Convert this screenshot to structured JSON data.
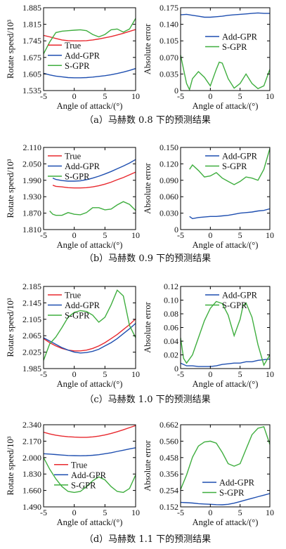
{
  "figure": {
    "captions": [
      "（a）马赫数 0.8 下的预测结果",
      "（b）马赫数 0.9 下的预测结果",
      "（c）马赫数 1.0 下的预测结果",
      "（d）马赫数 1.1 下的预测结果"
    ]
  },
  "colors": {
    "true": "#e8282e",
    "add_gpr": "#1f4fb0",
    "s_gpr": "#3fae3f"
  },
  "chart_data": [
    {
      "id": "a-speed",
      "type": "line",
      "xlabel": "Angle of attack/(°)",
      "ylabel": "Rotate speed/10³",
      "xlim": [
        -5,
        10
      ],
      "ylim": [
        1.535,
        1.885
      ],
      "xticks": [
        -5,
        0,
        5,
        10
      ],
      "yticks": [
        1.535,
        1.605,
        1.675,
        1.745,
        1.815,
        1.885
      ],
      "ytick_labels": [
        "1.535",
        "1.605",
        "1.675",
        "1.745",
        "1.815",
        "1.885"
      ],
      "legend": {
        "position": "center-left",
        "entries": [
          "True",
          "Add-GPR",
          "S-GPR"
        ]
      },
      "series": [
        {
          "name": "True",
          "color_key": "true",
          "x": [
            -5,
            -4,
            -3,
            -2,
            -1,
            0,
            1,
            2,
            3,
            4,
            5,
            6,
            7,
            8,
            9,
            10
          ],
          "y": [
            1.768,
            1.762,
            1.755,
            1.749,
            1.746,
            1.745,
            1.745,
            1.746,
            1.749,
            1.753,
            1.758,
            1.763,
            1.77,
            1.777,
            1.785,
            1.793
          ]
        },
        {
          "name": "Add-GPR",
          "color_key": "add_gpr",
          "x": [
            -5,
            -4,
            -3,
            -2,
            -1,
            0,
            1,
            2,
            3,
            4,
            5,
            6,
            7,
            8,
            9,
            10
          ],
          "y": [
            1.608,
            1.601,
            1.596,
            1.593,
            1.59,
            1.589,
            1.589,
            1.59,
            1.592,
            1.595,
            1.598,
            1.602,
            1.607,
            1.613,
            1.62,
            1.628
          ]
        },
        {
          "name": "S-GPR",
          "color_key": "s_gpr",
          "x": [
            -5,
            -4,
            -3,
            -2,
            -1,
            0,
            1,
            2,
            3,
            4,
            5,
            6,
            7,
            8,
            9,
            10
          ],
          "y": [
            1.69,
            1.74,
            1.78,
            1.786,
            1.788,
            1.79,
            1.792,
            1.788,
            1.772,
            1.762,
            1.772,
            1.792,
            1.795,
            1.782,
            1.795,
            1.84
          ]
        }
      ]
    },
    {
      "id": "a-err",
      "type": "line",
      "xlabel": "Angle of attack/(°)",
      "ylabel": "Absolute error",
      "xlim": [
        -5,
        10
      ],
      "ylim": [
        0,
        0.175
      ],
      "xticks": [
        -5,
        0,
        5,
        10
      ],
      "yticks": [
        0,
        0.035,
        0.07,
        0.105,
        0.14,
        0.175
      ],
      "ytick_labels": [
        "0",
        "0.035",
        "0.070",
        "0.105",
        "0.140",
        "0.175"
      ],
      "legend": {
        "position": "right",
        "entries": [
          "Add-GPR",
          "S-GPR"
        ]
      },
      "series": [
        {
          "name": "Add-GPR",
          "color_key": "add_gpr",
          "x": [
            -5,
            -4,
            -3,
            -2,
            -1,
            0,
            1,
            2,
            3,
            4,
            5,
            6,
            7,
            8,
            9,
            10
          ],
          "y": [
            0.16,
            0.161,
            0.159,
            0.157,
            0.155,
            0.155,
            0.156,
            0.157,
            0.159,
            0.16,
            0.161,
            0.162,
            0.163,
            0.164,
            0.163,
            0.163
          ]
        },
        {
          "name": "S-GPR",
          "color_key": "s_gpr",
          "x": [
            -5,
            -4.5,
            -4,
            -3.5,
            -3,
            -2,
            -1,
            0,
            1,
            1.5,
            2,
            3,
            4,
            5,
            6,
            7,
            8,
            9,
            10
          ],
          "y": [
            0.075,
            0.045,
            0.015,
            0.002,
            0.025,
            0.04,
            0.028,
            0.01,
            0.045,
            0.06,
            0.058,
            0.025,
            0.005,
            0.015,
            0.035,
            0.015,
            0.004,
            0.01,
            0.045
          ]
        }
      ]
    },
    {
      "id": "b-speed",
      "type": "line",
      "xlabel": "Angle of attack/(°)",
      "ylabel": "Rotate speed/10³",
      "xlim": [
        -5,
        10
      ],
      "ylim": [
        1.81,
        2.11
      ],
      "xticks": [
        -5,
        0,
        5,
        10
      ],
      "yticks": [
        1.81,
        1.87,
        1.93,
        1.99,
        2.05,
        2.11
      ],
      "ytick_labels": [
        "1.810",
        "1.870",
        "1.930",
        "1.990",
        "2.050",
        "2.110"
      ],
      "legend": {
        "position": "top-left",
        "entries": [
          "True",
          "Add-GPR",
          "S-GPR"
        ]
      },
      "series": [
        {
          "name": "True",
          "color_key": "true",
          "x": [
            -3.5,
            -3,
            -2,
            -1,
            0,
            1,
            2,
            3,
            4,
            5,
            6,
            7,
            8,
            9,
            10
          ],
          "y": [
            1.972,
            1.968,
            1.966,
            1.963,
            1.962,
            1.962,
            1.963,
            1.966,
            1.97,
            1.976,
            1.983,
            1.992,
            2.0,
            2.01,
            2.02
          ]
        },
        {
          "name": "Add-GPR",
          "color_key": "add_gpr",
          "x": [
            -3.5,
            -3,
            -2,
            -1,
            0,
            1,
            2,
            3,
            4,
            5,
            6,
            7,
            8,
            9,
            10
          ],
          "y": [
            1.998,
            1.993,
            1.989,
            1.987,
            1.987,
            1.988,
            1.992,
            1.998,
            2.005,
            2.013,
            2.022,
            2.032,
            2.042,
            2.053,
            2.066
          ]
        },
        {
          "name": "S-GPR",
          "color_key": "s_gpr",
          "x": [
            -4,
            -3.5,
            -3,
            -2,
            -1,
            0,
            1,
            2,
            3,
            4,
            5,
            6,
            7,
            8,
            9,
            10
          ],
          "y": [
            1.878,
            1.866,
            1.862,
            1.862,
            1.872,
            1.866,
            1.864,
            1.872,
            1.89,
            1.89,
            1.882,
            1.885,
            1.9,
            1.912,
            1.902,
            1.88
          ]
        }
      ]
    },
    {
      "id": "b-err",
      "type": "line",
      "xlabel": "Angle of attack/(°)",
      "ylabel": "Absolute error",
      "xlim": [
        -5,
        10
      ],
      "ylim": [
        0,
        0.15
      ],
      "xticks": [
        -5,
        0,
        5,
        10
      ],
      "yticks": [
        0,
        0.03,
        0.06,
        0.09,
        0.12,
        0.15
      ],
      "ytick_labels": [
        "0",
        "0.030",
        "0.060",
        "0.090",
        "0.120",
        "0.150"
      ],
      "legend": {
        "position": "top-right",
        "entries": [
          "Add-GPR",
          "S-GPR"
        ]
      },
      "series": [
        {
          "name": "Add-GPR",
          "color_key": "add_gpr",
          "x": [
            -3.5,
            -3,
            -2,
            -1,
            0,
            1,
            2,
            3,
            4,
            5,
            6,
            7,
            8,
            9,
            10
          ],
          "y": [
            0.024,
            0.02,
            0.022,
            0.023,
            0.024,
            0.024,
            0.025,
            0.026,
            0.028,
            0.03,
            0.031,
            0.032,
            0.034,
            0.035,
            0.038
          ]
        },
        {
          "name": "S-GPR",
          "color_key": "s_gpr",
          "x": [
            -3.5,
            -3,
            -2,
            -1,
            0,
            1,
            2,
            3,
            4,
            5,
            6,
            7,
            8,
            9,
            10
          ],
          "y": [
            0.11,
            0.118,
            0.108,
            0.096,
            0.098,
            0.104,
            0.094,
            0.088,
            0.082,
            0.088,
            0.096,
            0.094,
            0.09,
            0.11,
            0.148
          ]
        }
      ]
    },
    {
      "id": "c-speed",
      "type": "line",
      "xlabel": "Angle of attack/(°)",
      "ylabel": "Rotate speed/10³",
      "xlim": [
        -5,
        10
      ],
      "ylim": [
        1.985,
        2.185
      ],
      "xticks": [
        -5,
        0,
        5,
        10
      ],
      "yticks": [
        1.985,
        2.025,
        2.065,
        2.105,
        2.145,
        2.185
      ],
      "ytick_labels": [
        "1.985",
        "2.025",
        "2.065",
        "2.105",
        "2.145",
        "2.185"
      ],
      "legend": {
        "position": "top-left",
        "entries": [
          "True",
          "Add-GPR",
          "S-GPR"
        ]
      },
      "series": [
        {
          "name": "True",
          "color_key": "true",
          "x": [
            -5,
            -4,
            -3,
            -2,
            -1,
            0,
            1,
            2,
            3,
            4,
            5,
            6,
            7,
            8,
            9,
            10
          ],
          "y": [
            2.058,
            2.048,
            2.04,
            2.034,
            2.03,
            2.028,
            2.028,
            2.03,
            2.034,
            2.04,
            2.048,
            2.058,
            2.068,
            2.08,
            2.092,
            2.106
          ]
        },
        {
          "name": "Add-GPR",
          "color_key": "add_gpr",
          "x": [
            -5,
            -4,
            -3,
            -2,
            -1,
            0,
            1,
            2,
            3,
            4,
            5,
            6,
            7,
            8,
            9,
            10
          ],
          "y": [
            2.06,
            2.052,
            2.044,
            2.036,
            2.03,
            2.025,
            2.023,
            2.024,
            2.027,
            2.032,
            2.04,
            2.048,
            2.058,
            2.07,
            2.082,
            2.095
          ]
        },
        {
          "name": "S-GPR",
          "color_key": "s_gpr",
          "x": [
            -5,
            -4,
            -3,
            -2,
            -1,
            0,
            1,
            2,
            3,
            4,
            5,
            6,
            7,
            8,
            9,
            10
          ],
          "y": [
            2.005,
            2.045,
            2.062,
            2.085,
            2.11,
            2.122,
            2.126,
            2.124,
            2.115,
            2.098,
            2.11,
            2.14,
            2.176,
            2.162,
            2.09,
            2.06
          ]
        }
      ]
    },
    {
      "id": "c-err",
      "type": "line",
      "xlabel": "Angle of attack/(°)",
      "ylabel": "Absolute error",
      "xlim": [
        -5,
        10
      ],
      "ylim": [
        0,
        0.12
      ],
      "xticks": [
        -5,
        0,
        5,
        10
      ],
      "yticks": [
        0,
        0.02,
        0.04,
        0.06,
        0.08,
        0.1,
        0.12
      ],
      "ytick_labels": [
        "0",
        "0.02",
        "0.04",
        "0.06",
        "0.08",
        "0.10",
        "0.12"
      ],
      "legend": {
        "position": "top-right",
        "entries": [
          "Add-GPR",
          "S-GPR"
        ]
      },
      "series": [
        {
          "name": "Add-GPR",
          "color_key": "add_gpr",
          "x": [
            -5,
            -4,
            -3,
            -2,
            -1,
            0,
            1,
            2,
            3,
            4,
            5,
            6,
            7,
            8,
            9,
            10
          ],
          "y": [
            0.008,
            0.004,
            0.004,
            0.003,
            0.003,
            0.003,
            0.004,
            0.006,
            0.007,
            0.008,
            0.008,
            0.01,
            0.01,
            0.012,
            0.013,
            0.014
          ]
        },
        {
          "name": "S-GPR",
          "color_key": "s_gpr",
          "x": [
            -5,
            -4.5,
            -4,
            -3,
            -2,
            -1,
            0,
            1,
            2,
            3,
            4,
            5,
            5.5,
            6,
            7,
            8,
            9,
            10
          ],
          "y": [
            0.045,
            0.015,
            0.008,
            0.02,
            0.045,
            0.07,
            0.088,
            0.098,
            0.095,
            0.078,
            0.048,
            0.072,
            0.092,
            0.096,
            0.075,
            0.035,
            0.005,
            0.02
          ]
        }
      ]
    },
    {
      "id": "d-speed",
      "type": "line",
      "xlabel": "Angle of attack/(°)",
      "ylabel": "Rotate speed/10³",
      "xlim": [
        -5,
        10
      ],
      "ylim": [
        1.49,
        2.34
      ],
      "xticks": [
        -5,
        0,
        5,
        10
      ],
      "yticks": [
        1.49,
        1.66,
        1.83,
        2.0,
        2.17,
        2.34
      ],
      "ytick_labels": [
        "1.490",
        "1.660",
        "1.830",
        "2.000",
        "2.170",
        "2.340"
      ],
      "legend": {
        "position": "center-right",
        "entries": [
          "True",
          "Add-GPR",
          "S-GPR"
        ]
      },
      "series": [
        {
          "name": "True",
          "color_key": "true",
          "x": [
            -5,
            -4,
            -3,
            -2,
            -1,
            0,
            1,
            2,
            3,
            4,
            5,
            6,
            7,
            8,
            9,
            10
          ],
          "y": [
            2.262,
            2.245,
            2.232,
            2.222,
            2.216,
            2.212,
            2.21,
            2.21,
            2.214,
            2.222,
            2.234,
            2.25,
            2.268,
            2.288,
            2.31,
            2.332
          ]
        },
        {
          "name": "Add-GPR",
          "color_key": "add_gpr",
          "x": [
            -5,
            -4,
            -3,
            -2,
            -1,
            0,
            1,
            2,
            3,
            4,
            5,
            6,
            7,
            8,
            9,
            10
          ],
          "y": [
            2.04,
            2.036,
            2.031,
            2.026,
            2.022,
            2.02,
            2.019,
            2.02,
            2.024,
            2.03,
            2.04,
            2.05,
            2.064,
            2.076,
            2.09,
            2.102
          ]
        },
        {
          "name": "S-GPR",
          "color_key": "s_gpr",
          "x": [
            -5,
            -4,
            -3,
            -2,
            -1,
            0,
            1,
            2,
            3,
            4,
            5,
            6,
            7,
            8,
            9,
            10
          ],
          "y": [
            2.0,
            1.88,
            1.78,
            1.7,
            1.65,
            1.64,
            1.65,
            1.7,
            1.76,
            1.8,
            1.77,
            1.7,
            1.65,
            1.64,
            1.68,
            1.82
          ]
        }
      ]
    },
    {
      "id": "d-err",
      "type": "line",
      "xlabel": "Angle of attack/(°)",
      "ylabel": "Absolute error",
      "xlim": [
        -5,
        10
      ],
      "ylim": [
        0.152,
        0.662
      ],
      "xticks": [
        -5,
        0,
        5,
        10
      ],
      "yticks": [
        0.152,
        0.254,
        0.356,
        0.458,
        0.56,
        0.662
      ],
      "ytick_labels": [
        "0.152",
        "0.254",
        "0.356",
        "0.458",
        "0.560",
        "0.662"
      ],
      "legend": {
        "position": "bottom-right",
        "entries": [
          "Add-GPR",
          "S-GPR"
        ]
      },
      "series": [
        {
          "name": "Add-GPR",
          "color_key": "add_gpr",
          "x": [
            -5,
            -4,
            -3,
            -2,
            -1,
            0,
            1,
            2,
            3,
            4,
            5,
            6,
            7,
            8,
            9,
            10
          ],
          "y": [
            0.18,
            0.178,
            0.176,
            0.172,
            0.17,
            0.168,
            0.166,
            0.165,
            0.168,
            0.175,
            0.185,
            0.195,
            0.205,
            0.215,
            0.225,
            0.235
          ]
        },
        {
          "name": "S-GPR",
          "color_key": "s_gpr",
          "x": [
            -5,
            -4,
            -3,
            -2,
            -1,
            0,
            1,
            2,
            3,
            4,
            5,
            6,
            7,
            8,
            9,
            10
          ],
          "y": [
            0.26,
            0.35,
            0.46,
            0.53,
            0.555,
            0.56,
            0.548,
            0.49,
            0.42,
            0.405,
            0.42,
            0.51,
            0.6,
            0.64,
            0.65,
            0.54
          ]
        }
      ]
    }
  ]
}
